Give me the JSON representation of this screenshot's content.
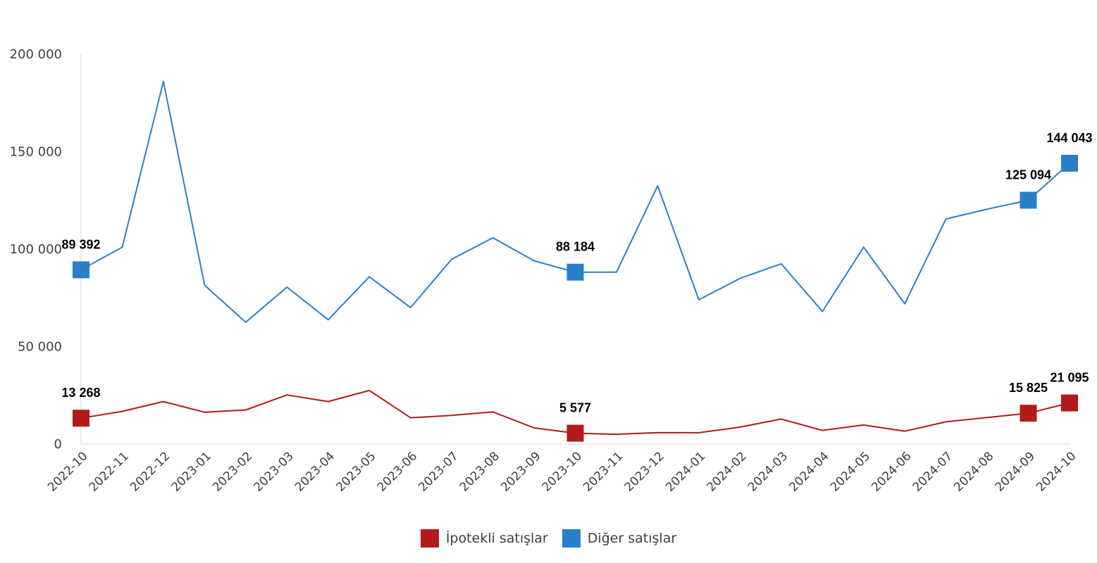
{
  "chart_data": {
    "type": "line",
    "categories": [
      "2022-10",
      "2022-11",
      "2022-12",
      "2023-01",
      "2023-02",
      "2023-03",
      "2023-04",
      "2023-05",
      "2023-06",
      "2023-07",
      "2023-08",
      "2023-09",
      "2023-10",
      "2023-11",
      "2023-12",
      "2024-01",
      "2024-02",
      "2024-03",
      "2024-04",
      "2024-05",
      "2024-06",
      "2024-07",
      "2024-08",
      "2024-09",
      "2024-10"
    ],
    "series": [
      {
        "name": "İpotekli satışlar",
        "color": "#b31a1a",
        "values": [
          13268,
          16800,
          21800,
          16300,
          17500,
          25200,
          21800,
          27500,
          13500,
          14700,
          16500,
          8300,
          5577,
          5000,
          5900,
          5800,
          8700,
          12800,
          7000,
          9800,
          6600,
          11400,
          13600,
          15825,
          21095
        ],
        "labels": {
          "0": "13 268",
          "12": "5 577",
          "23": "15 825",
          "24": "21 095"
        }
      },
      {
        "name": "Diğer satışlar",
        "color": "#2a7fc9",
        "values": [
          89392,
          101000,
          186000,
          81500,
          62500,
          80500,
          63800,
          85800,
          70000,
          94800,
          105800,
          94000,
          88184,
          88200,
          132500,
          74000,
          85000,
          92500,
          68000,
          101000,
          72000,
          115500,
          120500,
          125094,
          144043
        ],
        "labels": {
          "0": "89 392",
          "12": "88 184",
          "23": "125 094",
          "24": "144 043"
        }
      }
    ],
    "yticks": [
      {
        "value": 0,
        "label": "0"
      },
      {
        "value": 50000,
        "label": "50 000"
      },
      {
        "value": 100000,
        "label": "100 000"
      },
      {
        "value": 150000,
        "label": "150 000"
      },
      {
        "value": 200000,
        "label": "200 000"
      }
    ],
    "ylim": [
      0,
      200000
    ],
    "title": "",
    "xlabel": "",
    "ylabel": "",
    "grid": false,
    "legend_position": "bottom"
  }
}
